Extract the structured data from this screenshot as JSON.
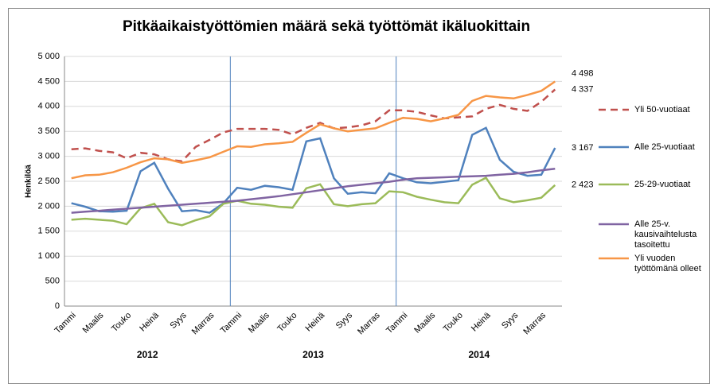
{
  "chart_data": {
    "type": "line",
    "title": "Pitkäaikaistyöttömien määrä sekä työttömät ikäluokittain",
    "y_label": "Henkilöä",
    "categories": [
      "Tammi",
      null,
      "Maalis",
      null,
      "Touko",
      null,
      "Heinä",
      null,
      "Syys",
      null,
      "Marras",
      null,
      "Tammi",
      null,
      "Maalis",
      null,
      "Touko",
      null,
      "Heinä",
      null,
      "Syys",
      null,
      "Marras",
      null,
      "Tammi",
      null,
      "Maalis",
      null,
      "Touko",
      null,
      "Heinä",
      null,
      "Syys",
      null,
      "Marras",
      null
    ],
    "years": [
      "2012",
      "2013",
      "2014"
    ],
    "ylim": [
      0,
      5000
    ],
    "yticks": [
      0,
      {
        "value": 500,
        "label": "500"
      },
      {
        "value": 1000,
        "label": "1 000"
      },
      {
        "value": 1500,
        "label": "1 500"
      },
      {
        "value": 2000,
        "label": "2 000"
      },
      {
        "value": 2500,
        "label": "2 500"
      },
      {
        "value": 3000,
        "label": "3 000"
      },
      {
        "value": 3500,
        "label": "3 500"
      },
      {
        "value": 4000,
        "label": "4 000"
      },
      {
        "value": 4500,
        "label": "4 500"
      },
      {
        "value": 5000,
        "label": "5 000"
      }
    ],
    "grid": true,
    "series": [
      {
        "name": "Yli 50-vuotiaat",
        "color": "#c0504d",
        "dashed": true,
        "last_label": "4 337",
        "label_color": "#c0504d",
        "values": [
          3140,
          3160,
          3110,
          3080,
          2960,
          3070,
          3040,
          2940,
          2900,
          3190,
          3330,
          3480,
          3550,
          3550,
          3550,
          3530,
          3440,
          3570,
          3670,
          3560,
          3580,
          3620,
          3700,
          3920,
          3920,
          3890,
          3820,
          3760,
          3780,
          3800,
          3950,
          4030,
          3950,
          3910,
          4090,
          4337
        ]
      },
      {
        "name": "Alle 25-vuotiaat",
        "color": "#4f81bd",
        "dashed": false,
        "last_label": "3 167",
        "label_color": "#000000",
        "values": [
          2060,
          1990,
          1900,
          1890,
          1910,
          2700,
          2870,
          2350,
          1900,
          1920,
          1870,
          2060,
          2370,
          2330,
          2410,
          2380,
          2330,
          3300,
          3360,
          2560,
          2250,
          2280,
          2260,
          2660,
          2560,
          2480,
          2460,
          2490,
          2520,
          3430,
          3570,
          2930,
          2690,
          2610,
          2630,
          3167
        ]
      },
      {
        "name": "25-29-vuotiaat",
        "color": "#9bbb59",
        "dashed": false,
        "last_label": "2 423",
        "label_color": "#000000",
        "values": [
          1730,
          1750,
          1730,
          1710,
          1640,
          1960,
          2050,
          1680,
          1620,
          1720,
          1800,
          2050,
          2110,
          2050,
          2030,
          1990,
          1970,
          2360,
          2440,
          2040,
          2000,
          2040,
          2060,
          2300,
          2280,
          2190,
          2130,
          2080,
          2060,
          2430,
          2570,
          2160,
          2080,
          2120,
          2170,
          2423
        ]
      },
      {
        "name": "Alle 25-v. kausivaihtelusta tasoitettu",
        "color": "#8064a2",
        "dashed": false,
        "values": [
          1870,
          1890,
          1910,
          1930,
          1950,
          1970,
          1990,
          2010,
          2030,
          2050,
          2070,
          2090,
          2110,
          2140,
          2170,
          2200,
          2240,
          2280,
          2320,
          2360,
          2400,
          2430,
          2460,
          2490,
          2530,
          2560,
          2570,
          2580,
          2590,
          2600,
          2610,
          2630,
          2650,
          2680,
          2720,
          2750
        ]
      },
      {
        "name": "Yli vuoden työttömänä olleet",
        "color": "#f79646",
        "dashed": false,
        "last_label": "4 498",
        "label_color": "#f79646",
        "values": [
          2560,
          2620,
          2630,
          2680,
          2770,
          2880,
          2960,
          2940,
          2870,
          2920,
          2980,
          3090,
          3200,
          3190,
          3240,
          3260,
          3290,
          3470,
          3640,
          3560,
          3500,
          3530,
          3560,
          3670,
          3770,
          3750,
          3700,
          3760,
          3830,
          4110,
          4210,
          4180,
          4160,
          4230,
          4310,
          4498
        ]
      }
    ]
  }
}
